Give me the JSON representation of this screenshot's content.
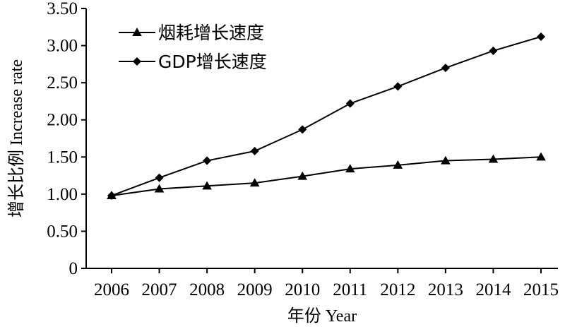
{
  "chart_data": {
    "type": "line",
    "title": "",
    "xlabel": "年份 Year",
    "ylabel": "增长比例 Increase rate",
    "x": [
      2006,
      2007,
      2008,
      2009,
      2010,
      2011,
      2012,
      2013,
      2014,
      2015
    ],
    "xtick_labels": [
      "2006",
      "2007",
      "2008",
      "2009",
      "2010",
      "2011",
      "2012",
      "2013",
      "2014",
      "2015"
    ],
    "ylim": [
      0,
      3.5
    ],
    "ytick_values": [
      0,
      0.5,
      1.0,
      1.5,
      2.0,
      2.5,
      3.0,
      3.5
    ],
    "ytick_labels": [
      "0",
      "0.50",
      "1.00",
      "1.50",
      "2.00",
      "2.50",
      "3.00",
      "3.50"
    ],
    "grid": false,
    "legend_position": "top-left",
    "series": [
      {
        "name": "烟耗增长速度",
        "marker": "triangle",
        "color": "#000000",
        "values": [
          0.98,
          1.07,
          1.11,
          1.15,
          1.24,
          1.34,
          1.39,
          1.45,
          1.47,
          1.5
        ]
      },
      {
        "name": "GDP增长速度",
        "marker": "diamond",
        "color": "#000000",
        "values": [
          0.98,
          1.22,
          1.45,
          1.58,
          1.87,
          2.22,
          2.45,
          2.7,
          2.93,
          3.12
        ]
      }
    ]
  }
}
